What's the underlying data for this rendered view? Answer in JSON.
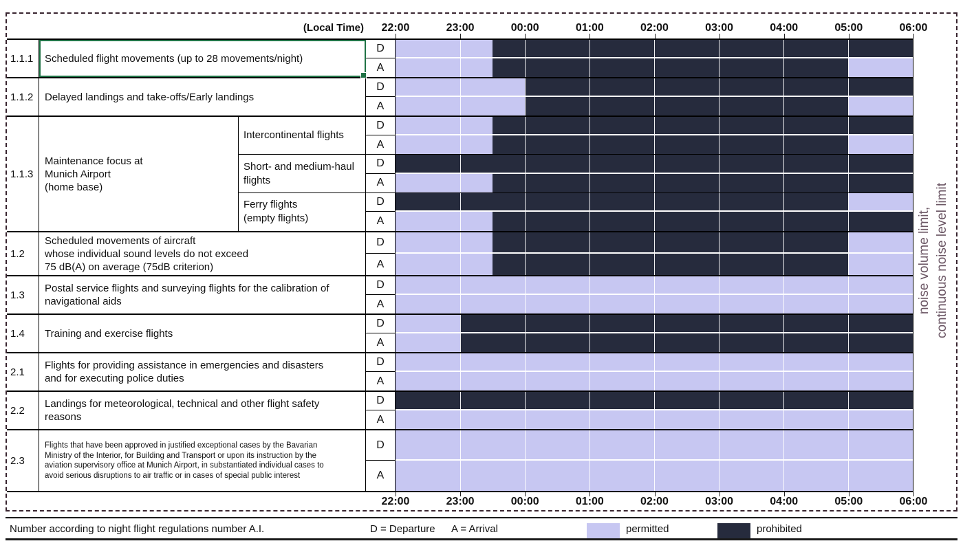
{
  "header": {
    "local_time_label": "(Local Time)",
    "time_labels": [
      "22:00",
      "23:00",
      "00:00",
      "01:00",
      "02:00",
      "03:00",
      "04:00",
      "05:00",
      "06:00"
    ]
  },
  "side_note": {
    "line1": "noise volume limit,",
    "line2": "continuous noise level limit"
  },
  "footer": {
    "note": "Number according to night flight regulations number A.I.",
    "d_label": "D = Departure",
    "a_label": "A = Arrival",
    "legend": [
      {
        "label": "permitted",
        "color": "#c7c7f2"
      },
      {
        "label": "prohibited",
        "color": "#262b3d"
      }
    ]
  },
  "colors": {
    "permitted": "#c7c7f2",
    "prohibited": "#262b3d",
    "selection_green": "#1f7245",
    "dashed_border": "#38242f",
    "side_note_text": "#6b5664"
  },
  "chart_data": {
    "type": "heatmap",
    "title": "Night flight regulations at Munich Airport (permitted / prohibited periods)",
    "x_axis": {
      "start": "22:00",
      "end": "06:00",
      "tick_labels": [
        "22:00",
        "23:00",
        "00:00",
        "01:00",
        "02:00",
        "03:00",
        "04:00",
        "05:00",
        "06:00"
      ]
    },
    "states": [
      "permitted",
      "prohibited"
    ],
    "dir_labels": [
      "D",
      "A"
    ],
    "rows": [
      {
        "num": "1.1.1",
        "desc_lines": [
          "Scheduled flight movements (up to 28 movements/night)"
        ],
        "selected": true,
        "unit_height": 56,
        "units": [
          {
            "d_segments": [
              [
                "22:00",
                "23:30",
                "permitted"
              ],
              [
                "23:30",
                "06:00",
                "prohibited"
              ]
            ],
            "a_segments": [
              [
                "22:00",
                "23:30",
                "permitted"
              ],
              [
                "23:30",
                "05:00",
                "prohibited"
              ],
              [
                "05:00",
                "06:00",
                "permitted"
              ]
            ]
          }
        ]
      },
      {
        "num": "1.1.2",
        "desc_lines": [
          "Delayed landings and take-offs/Early landings"
        ],
        "unit_height": 56,
        "units": [
          {
            "d_segments": [
              [
                "22:00",
                "00:00",
                "permitted"
              ],
              [
                "00:00",
                "06:00",
                "prohibited"
              ]
            ],
            "a_segments": [
              [
                "22:00",
                "00:00",
                "permitted"
              ],
              [
                "00:00",
                "05:00",
                "prohibited"
              ],
              [
                "05:00",
                "06:00",
                "permitted"
              ]
            ]
          }
        ]
      },
      {
        "num": "1.1.3",
        "desc_lines": [
          "Maintenance focus at",
          "Munich Airport",
          "(home base)"
        ],
        "desc_width": 290,
        "unit_height": 56,
        "units": [
          {
            "label_lines": [
              "Intercontinental flights"
            ],
            "d_segments": [
              [
                "22:00",
                "23:30",
                "permitted"
              ],
              [
                "23:30",
                "06:00",
                "prohibited"
              ]
            ],
            "a_segments": [
              [
                "22:00",
                "23:30",
                "permitted"
              ],
              [
                "23:30",
                "05:00",
                "prohibited"
              ],
              [
                "05:00",
                "06:00",
                "permitted"
              ]
            ]
          },
          {
            "label_lines": [
              "Short- and medium-haul",
              "flights"
            ],
            "d_segments": [
              [
                "22:00",
                "06:00",
                "prohibited"
              ]
            ],
            "a_segments": [
              [
                "22:00",
                "23:30",
                "permitted"
              ],
              [
                "23:30",
                "06:00",
                "prohibited"
              ]
            ]
          },
          {
            "label_lines": [
              "Ferry flights",
              "(empty flights)"
            ],
            "d_segments": [
              [
                "22:00",
                "05:00",
                "prohibited"
              ],
              [
                "05:00",
                "06:00",
                "permitted"
              ]
            ],
            "a_segments": [
              [
                "22:00",
                "23:30",
                "permitted"
              ],
              [
                "23:30",
                "06:00",
                "prohibited"
              ]
            ]
          }
        ]
      },
      {
        "num": "1.2",
        "desc_lines": [
          "Scheduled movements of aircraft",
          "whose individual sound levels do not exceed",
          "75 dB(A) on average (75dB criterion)"
        ],
        "unit_height": 64,
        "units": [
          {
            "d_segments": [
              [
                "22:00",
                "23:30",
                "permitted"
              ],
              [
                "23:30",
                "05:00",
                "prohibited"
              ],
              [
                "05:00",
                "06:00",
                "permitted"
              ]
            ],
            "a_segments": [
              [
                "22:00",
                "23:30",
                "permitted"
              ],
              [
                "23:30",
                "05:00",
                "prohibited"
              ],
              [
                "05:00",
                "06:00",
                "permitted"
              ]
            ]
          }
        ]
      },
      {
        "num": "1.3",
        "desc_lines": [
          "Postal service flights and surveying flights for the calibration of",
          "navigational aids"
        ],
        "unit_height": 56,
        "units": [
          {
            "d_segments": [
              [
                "22:00",
                "06:00",
                "permitted"
              ]
            ],
            "a_segments": [
              [
                "22:00",
                "06:00",
                "permitted"
              ]
            ]
          }
        ]
      },
      {
        "num": "1.4",
        "desc_lines": [
          "Training and exercise flights"
        ],
        "unit_height": 56,
        "units": [
          {
            "d_segments": [
              [
                "22:00",
                "23:00",
                "permitted"
              ],
              [
                "23:00",
                "06:00",
                "prohibited"
              ]
            ],
            "a_segments": [
              [
                "22:00",
                "23:00",
                "permitted"
              ],
              [
                "23:00",
                "06:00",
                "prohibited"
              ]
            ]
          }
        ]
      },
      {
        "num": "2.1",
        "desc_lines": [
          "Flights for providing assistance in emergencies and disasters",
          "and for executing police duties"
        ],
        "unit_height": 56,
        "units": [
          {
            "d_segments": [
              [
                "22:00",
                "06:00",
                "permitted"
              ]
            ],
            "a_segments": [
              [
                "22:00",
                "06:00",
                "permitted"
              ]
            ]
          }
        ]
      },
      {
        "num": "2.2",
        "desc_lines": [
          "Landings for meteorological, technical and other flight safety",
          "reasons"
        ],
        "unit_height": 56,
        "units": [
          {
            "d_segments": [
              [
                "22:00",
                "06:00",
                "prohibited"
              ]
            ],
            "a_segments": [
              [
                "22:00",
                "06:00",
                "permitted"
              ]
            ]
          }
        ]
      },
      {
        "num": "2.3",
        "desc_lines": [
          "Flights that have been approved in justified exceptional cases by the Bavarian",
          "Ministry of the Interior, for Building and Transport or upon its instruction by the",
          "aviation supervisory office at Munich Airport, in substantiated individual cases to",
          "avoid serious disruptions to air traffic or in cases of special public interest"
        ],
        "small_text": true,
        "unit_height": 90,
        "units": [
          {
            "d_segments": [
              [
                "22:00",
                "06:00",
                "permitted"
              ]
            ],
            "a_segments": [
              [
                "22:00",
                "06:00",
                "permitted"
              ]
            ]
          }
        ]
      }
    ]
  }
}
